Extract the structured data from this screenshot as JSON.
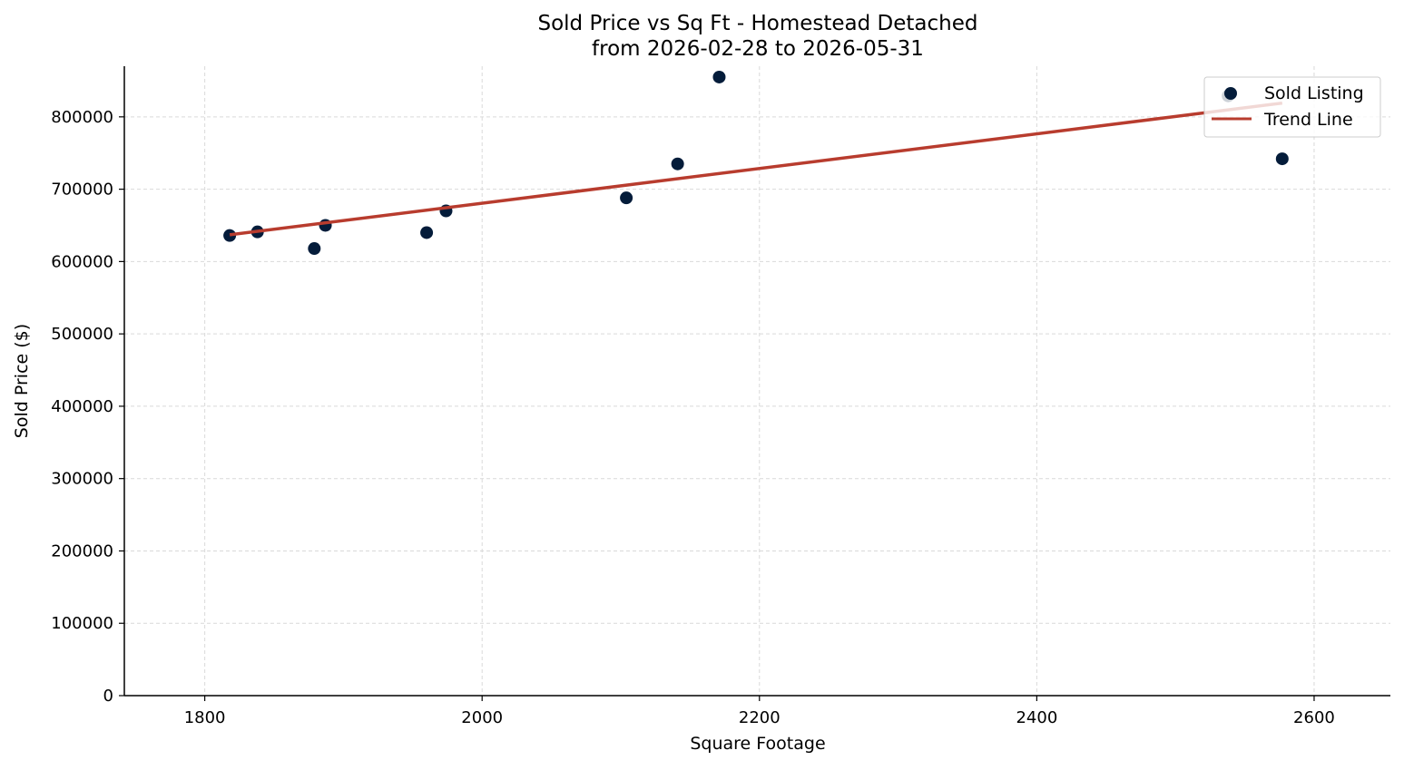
{
  "chart_data": {
    "type": "scatter",
    "title": "Sold Price vs Sq Ft - Homestead Detached",
    "subtitle": "from 2026-02-28 to 2026-05-31",
    "xlabel": "Square Footage",
    "ylabel": "Sold Price ($)",
    "xlim": [
      1742,
      2655
    ],
    "ylim": [
      0,
      870000
    ],
    "xticks": [
      1800,
      2000,
      2200,
      2400,
      2600
    ],
    "yticks": [
      0,
      100000,
      200000,
      300000,
      400000,
      500000,
      600000,
      700000,
      800000
    ],
    "grid": true,
    "legend_position": "top-right",
    "series": [
      {
        "name": "Sold Listing",
        "kind": "scatter",
        "color": "#041c3a",
        "points": [
          {
            "x": 1818,
            "y": 636000
          },
          {
            "x": 1838,
            "y": 641000
          },
          {
            "x": 1879,
            "y": 618000
          },
          {
            "x": 1887,
            "y": 650000
          },
          {
            "x": 1960,
            "y": 640000
          },
          {
            "x": 1974,
            "y": 670000
          },
          {
            "x": 2104,
            "y": 688000
          },
          {
            "x": 2141,
            "y": 735000
          },
          {
            "x": 2171,
            "y": 855000
          },
          {
            "x": 2538,
            "y": 829000
          },
          {
            "x": 2577,
            "y": 742000
          }
        ]
      },
      {
        "name": "Trend Line",
        "kind": "line",
        "color": "#b83c2e",
        "points": [
          {
            "x": 1818,
            "y": 637000
          },
          {
            "x": 2577,
            "y": 819000
          }
        ]
      }
    ]
  }
}
